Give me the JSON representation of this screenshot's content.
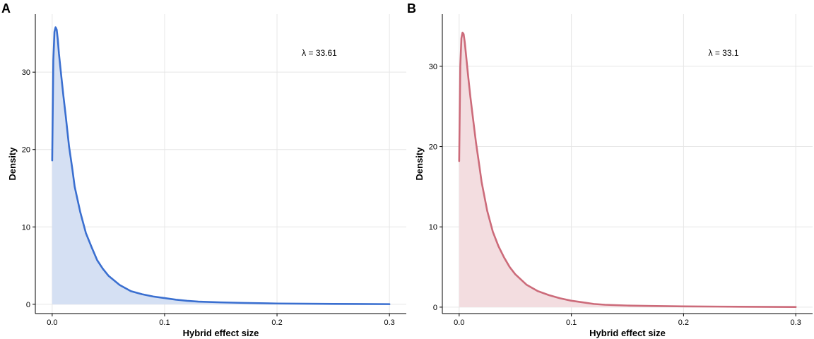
{
  "chart_data": [
    {
      "type": "area",
      "panel_label": "A",
      "xlabel": "Hybrid effect size",
      "ylabel": "Density",
      "annotation": "λ = 33.61",
      "xlim": [
        -0.015,
        0.315
      ],
      "ylim": [
        -1.2,
        37.5
      ],
      "xticks": [
        0.0,
        0.1,
        0.2,
        0.3
      ],
      "xtick_labels": [
        "0.0",
        "0.1",
        "0.2",
        "0.3"
      ],
      "yticks": [
        0,
        10,
        20,
        30
      ],
      "ytick_labels": [
        "0",
        "10",
        "20",
        "30"
      ],
      "grid": true,
      "line_color": "#3a6fd0",
      "fill_color": "#d5e0f3",
      "x": [
        0.0,
        0.001,
        0.002,
        0.003,
        0.004,
        0.005,
        0.006,
        0.008,
        0.01,
        0.012,
        0.015,
        0.018,
        0.02,
        0.025,
        0.03,
        0.035,
        0.04,
        0.045,
        0.05,
        0.06,
        0.07,
        0.08,
        0.09,
        0.1,
        0.11,
        0.12,
        0.13,
        0.15,
        0.17,
        0.2,
        0.25,
        0.3
      ],
      "y": [
        18.6,
        31.5,
        35.2,
        35.8,
        35.5,
        34.2,
        32.4,
        29.6,
        26.9,
        24.4,
        20.4,
        17.4,
        15.2,
        11.9,
        9.2,
        7.4,
        5.7,
        4.6,
        3.7,
        2.5,
        1.7,
        1.3,
        1.0,
        0.8,
        0.6,
        0.45,
        0.35,
        0.25,
        0.18,
        0.1,
        0.05,
        0.02
      ]
    },
    {
      "type": "area",
      "panel_label": "B",
      "xlabel": "Hybrid effect size",
      "ylabel": "Density",
      "annotation": "λ = 33.1",
      "xlim": [
        -0.015,
        0.315
      ],
      "ylim": [
        -0.8,
        36.5
      ],
      "xticks": [
        0.0,
        0.1,
        0.2,
        0.3
      ],
      "xtick_labels": [
        "0.0",
        "0.1",
        "0.2",
        "0.3"
      ],
      "yticks": [
        0,
        10,
        20,
        30
      ],
      "ytick_labels": [
        "0",
        "10",
        "20",
        "30"
      ],
      "grid": true,
      "line_color": "#cc6b7a",
      "fill_color": "#f3dde0",
      "x": [
        0.0,
        0.001,
        0.002,
        0.003,
        0.004,
        0.005,
        0.006,
        0.008,
        0.01,
        0.012,
        0.015,
        0.018,
        0.02,
        0.025,
        0.03,
        0.035,
        0.04,
        0.045,
        0.05,
        0.06,
        0.07,
        0.08,
        0.09,
        0.1,
        0.11,
        0.12,
        0.13,
        0.15,
        0.17,
        0.2,
        0.25,
        0.3
      ],
      "y": [
        18.2,
        30.0,
        33.5,
        34.2,
        34.0,
        33.0,
        31.6,
        28.8,
        26.2,
        23.9,
        20.5,
        17.6,
        15.6,
        12.0,
        9.4,
        7.6,
        6.2,
        5.0,
        4.1,
        2.8,
        2.0,
        1.5,
        1.1,
        0.8,
        0.6,
        0.4,
        0.3,
        0.2,
        0.15,
        0.1,
        0.05,
        0.02
      ]
    }
  ]
}
